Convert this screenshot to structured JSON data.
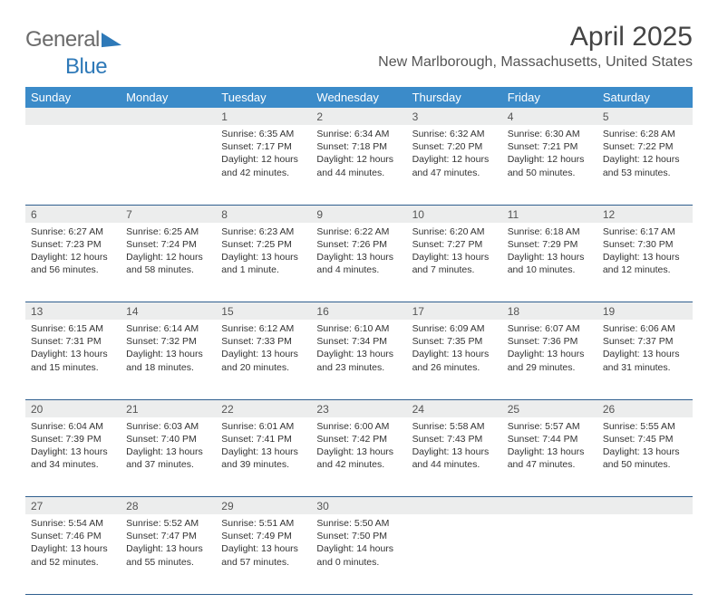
{
  "logo": {
    "general": "General",
    "blue": "Blue"
  },
  "title": "April 2025",
  "location": "New Marlborough, Massachusetts, United States",
  "day_headers": [
    "Sunday",
    "Monday",
    "Tuesday",
    "Wednesday",
    "Thursday",
    "Friday",
    "Saturday"
  ],
  "colors": {
    "header_bg": "#3b8bc9",
    "header_text": "#ffffff",
    "daynum_bg": "#eceded",
    "cell_border": "#2f5f8f",
    "title_color": "#444444",
    "location_color": "#555555",
    "logo_gray": "#6b6b6b",
    "logo_blue": "#2e79b8",
    "body_text": "#333333"
  },
  "weeks": [
    [
      null,
      null,
      {
        "n": "1",
        "sunrise": "6:35 AM",
        "sunset": "7:17 PM",
        "daylight": "12 hours and 42 minutes."
      },
      {
        "n": "2",
        "sunrise": "6:34 AM",
        "sunset": "7:18 PM",
        "daylight": "12 hours and 44 minutes."
      },
      {
        "n": "3",
        "sunrise": "6:32 AM",
        "sunset": "7:20 PM",
        "daylight": "12 hours and 47 minutes."
      },
      {
        "n": "4",
        "sunrise": "6:30 AM",
        "sunset": "7:21 PM",
        "daylight": "12 hours and 50 minutes."
      },
      {
        "n": "5",
        "sunrise": "6:28 AM",
        "sunset": "7:22 PM",
        "daylight": "12 hours and 53 minutes."
      }
    ],
    [
      {
        "n": "6",
        "sunrise": "6:27 AM",
        "sunset": "7:23 PM",
        "daylight": "12 hours and 56 minutes."
      },
      {
        "n": "7",
        "sunrise": "6:25 AM",
        "sunset": "7:24 PM",
        "daylight": "12 hours and 58 minutes."
      },
      {
        "n": "8",
        "sunrise": "6:23 AM",
        "sunset": "7:25 PM",
        "daylight": "13 hours and 1 minute."
      },
      {
        "n": "9",
        "sunrise": "6:22 AM",
        "sunset": "7:26 PM",
        "daylight": "13 hours and 4 minutes."
      },
      {
        "n": "10",
        "sunrise": "6:20 AM",
        "sunset": "7:27 PM",
        "daylight": "13 hours and 7 minutes."
      },
      {
        "n": "11",
        "sunrise": "6:18 AM",
        "sunset": "7:29 PM",
        "daylight": "13 hours and 10 minutes."
      },
      {
        "n": "12",
        "sunrise": "6:17 AM",
        "sunset": "7:30 PM",
        "daylight": "13 hours and 12 minutes."
      }
    ],
    [
      {
        "n": "13",
        "sunrise": "6:15 AM",
        "sunset": "7:31 PM",
        "daylight": "13 hours and 15 minutes."
      },
      {
        "n": "14",
        "sunrise": "6:14 AM",
        "sunset": "7:32 PM",
        "daylight": "13 hours and 18 minutes."
      },
      {
        "n": "15",
        "sunrise": "6:12 AM",
        "sunset": "7:33 PM",
        "daylight": "13 hours and 20 minutes."
      },
      {
        "n": "16",
        "sunrise": "6:10 AM",
        "sunset": "7:34 PM",
        "daylight": "13 hours and 23 minutes."
      },
      {
        "n": "17",
        "sunrise": "6:09 AM",
        "sunset": "7:35 PM",
        "daylight": "13 hours and 26 minutes."
      },
      {
        "n": "18",
        "sunrise": "6:07 AM",
        "sunset": "7:36 PM",
        "daylight": "13 hours and 29 minutes."
      },
      {
        "n": "19",
        "sunrise": "6:06 AM",
        "sunset": "7:37 PM",
        "daylight": "13 hours and 31 minutes."
      }
    ],
    [
      {
        "n": "20",
        "sunrise": "6:04 AM",
        "sunset": "7:39 PM",
        "daylight": "13 hours and 34 minutes."
      },
      {
        "n": "21",
        "sunrise": "6:03 AM",
        "sunset": "7:40 PM",
        "daylight": "13 hours and 37 minutes."
      },
      {
        "n": "22",
        "sunrise": "6:01 AM",
        "sunset": "7:41 PM",
        "daylight": "13 hours and 39 minutes."
      },
      {
        "n": "23",
        "sunrise": "6:00 AM",
        "sunset": "7:42 PM",
        "daylight": "13 hours and 42 minutes."
      },
      {
        "n": "24",
        "sunrise": "5:58 AM",
        "sunset": "7:43 PM",
        "daylight": "13 hours and 44 minutes."
      },
      {
        "n": "25",
        "sunrise": "5:57 AM",
        "sunset": "7:44 PM",
        "daylight": "13 hours and 47 minutes."
      },
      {
        "n": "26",
        "sunrise": "5:55 AM",
        "sunset": "7:45 PM",
        "daylight": "13 hours and 50 minutes."
      }
    ],
    [
      {
        "n": "27",
        "sunrise": "5:54 AM",
        "sunset": "7:46 PM",
        "daylight": "13 hours and 52 minutes."
      },
      {
        "n": "28",
        "sunrise": "5:52 AM",
        "sunset": "7:47 PM",
        "daylight": "13 hours and 55 minutes."
      },
      {
        "n": "29",
        "sunrise": "5:51 AM",
        "sunset": "7:49 PM",
        "daylight": "13 hours and 57 minutes."
      },
      {
        "n": "30",
        "sunrise": "5:50 AM",
        "sunset": "7:50 PM",
        "daylight": "14 hours and 0 minutes."
      },
      null,
      null,
      null
    ]
  ],
  "labels": {
    "sunrise": "Sunrise: ",
    "sunset": "Sunset: ",
    "daylight": "Daylight: "
  }
}
